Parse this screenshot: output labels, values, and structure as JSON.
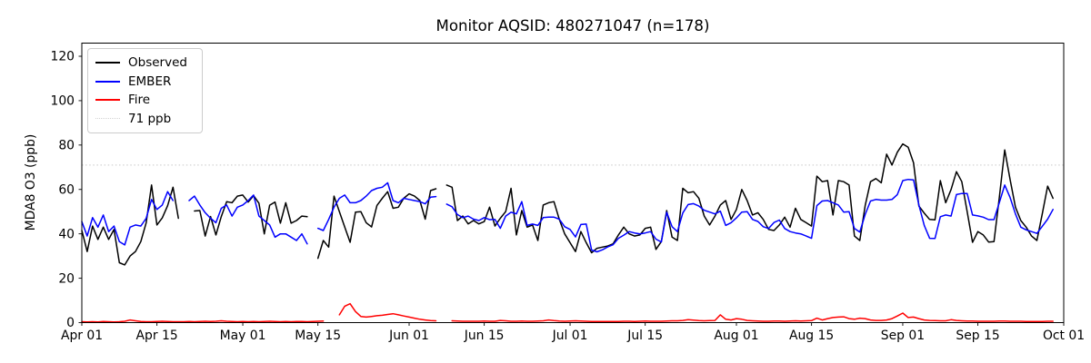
{
  "title": "Monitor AQSID: 480271047 (n=178)",
  "y_axis": {
    "label": "MDA8 O3 (ppb)",
    "ticks": [
      0,
      20,
      40,
      60,
      80,
      100,
      120
    ],
    "max": 126
  },
  "x_axis": {
    "total_days": 183,
    "ticks": [
      {
        "label": "Apr 01",
        "day": 0
      },
      {
        "label": "Apr 15",
        "day": 14
      },
      {
        "label": "May 01",
        "day": 30
      },
      {
        "label": "May 15",
        "day": 44
      },
      {
        "label": "Jun 01",
        "day": 61
      },
      {
        "label": "Jun 15",
        "day": 75
      },
      {
        "label": "Jul 01",
        "day": 91
      },
      {
        "label": "Jul 15",
        "day": 105
      },
      {
        "label": "Aug 01",
        "day": 122
      },
      {
        "label": "Aug 15",
        "day": 136
      },
      {
        "label": "Sep 01",
        "day": 153
      },
      {
        "label": "Sep 15",
        "day": 167
      },
      {
        "label": "Oct 01",
        "day": 183
      }
    ]
  },
  "threshold": {
    "value": 71,
    "label": "71 ppb",
    "color": "#d3d3d3"
  },
  "legend": {
    "items": [
      {
        "label": "Observed",
        "color": "#000000",
        "style": "solid"
      },
      {
        "label": "EMBER",
        "color": "#0000ff",
        "style": "solid"
      },
      {
        "label": "Fire",
        "color": "#ff0000",
        "style": "solid"
      },
      {
        "label": "71 ppb",
        "color": "#d3d3d3",
        "style": "dotted"
      }
    ]
  },
  "chart_data": {
    "type": "line",
    "title": "Monitor AQSID: 480271047 (n=178)",
    "xlabel": "",
    "ylabel": "MDA8 O3 (ppb)",
    "ylim": [
      0,
      126
    ],
    "x_start_date": "Apr 01",
    "x_end_date": "Oct 01",
    "x_frequency": "daily",
    "grid": false,
    "legend_position": "upper-left",
    "threshold_ppb": 71,
    "series": [
      {
        "name": "Observed",
        "color": "#000000",
        "values": [
          41.5,
          32,
          43.5,
          37.5,
          43,
          37.5,
          42,
          27,
          26,
          30,
          32,
          36.5,
          45,
          62,
          44,
          47.2,
          52.7,
          61,
          47,
          null,
          null,
          50.3,
          50.5,
          39,
          47.8,
          39.5,
          47.8,
          54.5,
          54,
          57,
          57.5,
          54.3,
          57.2,
          53.8,
          40,
          52.9,
          54.3,
          44.8,
          54,
          44.8,
          46,
          48,
          47.7,
          null,
          29,
          37,
          34,
          57,
          50,
          43,
          36.2,
          49.8,
          50,
          45,
          43.1,
          52.8,
          56,
          59,
          51.5,
          52,
          56,
          58,
          57,
          55,
          46.6,
          59.5,
          60.3,
          null,
          62,
          61,
          46,
          48,
          44.5,
          46,
          44.5,
          45.5,
          52,
          43.5,
          47,
          50,
          60.5,
          39.5,
          50.5,
          43,
          44,
          37,
          53,
          54,
          54.5,
          46.5,
          40,
          36,
          32,
          41,
          36,
          31.5,
          33.5,
          34,
          34.5,
          35.5,
          39.5,
          43,
          40,
          39,
          39.5,
          42.5,
          43,
          33,
          36.5,
          50.5,
          38.5,
          37,
          60.5,
          58.5,
          59,
          56,
          48,
          44,
          48,
          53,
          55,
          46.5,
          51,
          60,
          55,
          48.5,
          49.5,
          46.5,
          42,
          41.5,
          44,
          47.5,
          43,
          51.5,
          46.5,
          45,
          43.5,
          66,
          63.5,
          64,
          48.5,
          64,
          63.5,
          62,
          39,
          37,
          52.7,
          63.5,
          64.9,
          63,
          75.9,
          71,
          76.8,
          80.5,
          79,
          72,
          52.5,
          49.3,
          46.5,
          46.3,
          64,
          54,
          60,
          68,
          63.5,
          50,
          36.2,
          41,
          39.5,
          36.3,
          36.5,
          56.5,
          77.8,
          64.5,
          52,
          46,
          43,
          39,
          37,
          49,
          61.5,
          56,
          null
        ]
      },
      {
        "name": "EMBER",
        "color": "#0000ff",
        "values": [
          45.5,
          39,
          47.3,
          43,
          48.5,
          41,
          43.5,
          36.5,
          35,
          43,
          44,
          43.5,
          47,
          55.5,
          51,
          53,
          59,
          55,
          null,
          null,
          55,
          57,
          53,
          49.5,
          47,
          45,
          51.5,
          53,
          48,
          52,
          53,
          55,
          57.5,
          48,
          46,
          44,
          38.5,
          40,
          40,
          38.5,
          37,
          40,
          35.5,
          null,
          42.5,
          41.5,
          46.5,
          52,
          56,
          57.5,
          54,
          54,
          55,
          57,
          59.5,
          60.5,
          61,
          63,
          55,
          54,
          56,
          55.5,
          55,
          54.5,
          53.5,
          56.5,
          56.8,
          null,
          53.4,
          52.2,
          48.7,
          47.3,
          48,
          46.6,
          46,
          47.3,
          46.4,
          46.5,
          42.5,
          48,
          49.7,
          49,
          54.5,
          43.8,
          44.4,
          43.8,
          47.3,
          47.5,
          47.5,
          46.6,
          43.2,
          42,
          38.6,
          44.2,
          44.4,
          32.7,
          31.9,
          32.8,
          34.1,
          35.1,
          38,
          39.4,
          41,
          40.4,
          40,
          40.4,
          41,
          37.6,
          36.3,
          49.7,
          43.2,
          41,
          49.4,
          53.2,
          53.6,
          52.5,
          50.6,
          49.8,
          49,
          50.2,
          43.8,
          45,
          47.2,
          49.8,
          50,
          46.5,
          45.6,
          43.2,
          42.4,
          45.1,
          46.2,
          42.4,
          41,
          40.4,
          40,
          39,
          38,
          52.7,
          54.8,
          55,
          54,
          53,
          49.8,
          50,
          42.4,
          40.8,
          48.7,
          54.8,
          55.5,
          55.2,
          55.2,
          55.5,
          57.7,
          64,
          64.5,
          64.3,
          53,
          43.8,
          38,
          37.9,
          47.7,
          48.5,
          48,
          57.7,
          58.2,
          58.2,
          48.5,
          48.1,
          47.5,
          46.4,
          46.4,
          54.1,
          62,
          56.4,
          49,
          43,
          41.8,
          41,
          40.2,
          43.4,
          46.6,
          51,
          null
        ]
      },
      {
        "name": "Fire",
        "color": "#ff0000",
        "values": [
          0.4,
          0.3,
          0.4,
          0.3,
          0.5,
          0.4,
          0.3,
          0.4,
          0.6,
          1.2,
          0.8,
          0.5,
          0.4,
          0.4,
          0.5,
          0.6,
          0.5,
          0.4,
          0.4,
          0.4,
          0.5,
          0.4,
          0.5,
          0.6,
          0.5,
          0.6,
          0.8,
          0.6,
          0.5,
          0.4,
          0.5,
          0.4,
          0.5,
          0.4,
          0.5,
          0.6,
          0.5,
          0.4,
          0.5,
          0.4,
          0.5,
          0.5,
          0.4,
          0.5,
          0.6,
          0.7,
          null,
          null,
          3.5,
          7.4,
          8.5,
          5,
          2.8,
          2.5,
          2.8,
          3.1,
          3.3,
          3.7,
          4,
          3.5,
          3,
          2.5,
          2,
          1.5,
          1.2,
          0.9,
          0.8,
          null,
          null,
          0.8,
          0.7,
          0.6,
          0.6,
          0.6,
          0.6,
          0.7,
          0.6,
          0.6,
          1,
          0.8,
          0.6,
          0.6,
          0.7,
          0.6,
          0.6,
          0.7,
          0.8,
          1.2,
          0.9,
          0.7,
          0.6,
          0.7,
          0.8,
          0.7,
          0.6,
          0.5,
          0.5,
          0.5,
          0.5,
          0.5,
          0.5,
          0.6,
          0.6,
          0.5,
          0.6,
          0.7,
          0.6,
          0.6,
          0.6,
          0.7,
          0.8,
          0.8,
          1,
          1.3,
          1.1,
          0.9,
          0.8,
          0.9,
          1,
          3.5,
          1.5,
          1.2,
          1.8,
          1.5,
          1,
          0.8,
          0.7,
          0.6,
          0.6,
          0.7,
          0.7,
          0.6,
          0.7,
          0.8,
          0.7,
          0.8,
          0.9,
          2,
          1.2,
          1.8,
          2.3,
          2.5,
          2.6,
          1.8,
          1.5,
          2,
          1.8,
          1.2,
          1,
          1,
          1.2,
          1.8,
          3,
          4.3,
          2.3,
          2.5,
          1.8,
          1.2,
          1,
          0.9,
          0.8,
          0.8,
          1.3,
          1,
          0.8,
          0.7,
          0.7,
          0.6,
          0.6,
          0.6,
          0.6,
          0.7,
          0.7,
          0.6,
          0.6,
          0.6,
          0.5,
          0.5,
          0.5,
          0.5,
          0.6,
          0.6,
          null
        ]
      }
    ]
  }
}
